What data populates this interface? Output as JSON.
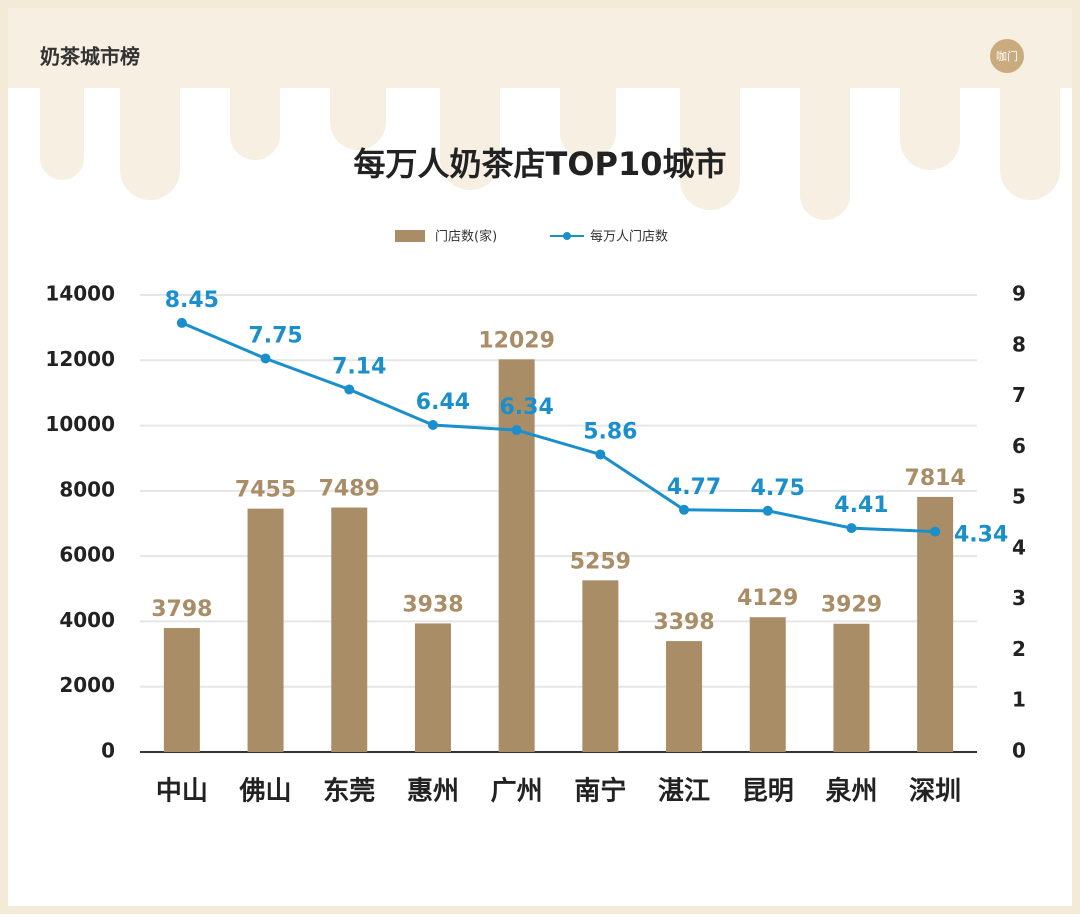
{
  "header": {
    "title": "奶茶城市榜",
    "logo": "咖门"
  },
  "chart_data": {
    "type": "bar",
    "title": "每万人奶茶店TOP10城市",
    "categories": [
      "中山",
      "佛山",
      "东莞",
      "惠州",
      "广州",
      "南宁",
      "湛江",
      "昆明",
      "泉州",
      "深圳"
    ],
    "series": [
      {
        "name": "门店数(家)",
        "type": "bar",
        "color": "#a88d66",
        "label_color": "#a88d66",
        "values": [
          3798,
          7455,
          7489,
          3938,
          12029,
          5259,
          3398,
          4129,
          3929,
          7814
        ]
      },
      {
        "name": "每万人门店数",
        "type": "line",
        "axis": "y2",
        "color": "#1a8fcb",
        "label_color": "#1a8fcb",
        "values": [
          8.45,
          7.75,
          7.14,
          6.44,
          6.34,
          5.86,
          4.77,
          4.75,
          4.41,
          4.34
        ]
      }
    ],
    "ylim": [
      0,
      14000
    ],
    "yticks": [
      0,
      2000,
      4000,
      6000,
      8000,
      10000,
      12000,
      14000
    ],
    "y2lim": [
      0,
      9
    ],
    "y2ticks": [
      0,
      1,
      2,
      3,
      4,
      5,
      6,
      7,
      8,
      9
    ],
    "grid": true,
    "legend": "top"
  }
}
